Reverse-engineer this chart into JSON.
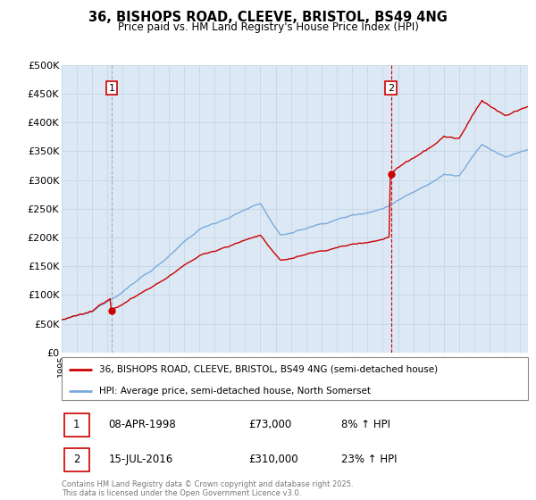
{
  "title": "36, BISHOPS ROAD, CLEEVE, BRISTOL, BS49 4NG",
  "subtitle": "Price paid vs. HM Land Registry's House Price Index (HPI)",
  "legend_line1": "36, BISHOPS ROAD, CLEEVE, BRISTOL, BS49 4NG (semi-detached house)",
  "legend_line2": "HPI: Average price, semi-detached house, North Somerset",
  "footer": "Contains HM Land Registry data © Crown copyright and database right 2025.\nThis data is licensed under the Open Government Licence v3.0.",
  "annotation1": {
    "label": "1",
    "date": "08-APR-1998",
    "price": "£73,000",
    "pct": "8% ↑ HPI",
    "x_year": 1998.27,
    "y_val": 73000
  },
  "annotation2": {
    "label": "2",
    "date": "15-JUL-2016",
    "price": "£310,000",
    "pct": "23% ↑ HPI",
    "x_year": 2016.54,
    "y_val": 310000
  },
  "ylim": [
    0,
    500000
  ],
  "yticks": [
    0,
    50000,
    100000,
    150000,
    200000,
    250000,
    300000,
    350000,
    400000,
    450000,
    500000
  ],
  "ytick_labels": [
    "£0",
    "£50K",
    "£100K",
    "£150K",
    "£200K",
    "£250K",
    "£300K",
    "£350K",
    "£400K",
    "£450K",
    "£500K"
  ],
  "property_color": "#cc0000",
  "hpi_color": "#7aaadd",
  "plot_bg": "#dce9f5",
  "plot_bg_right": "#e8f0f8",
  "grid_color": "#c8d8e8",
  "vline1_color": "#aaaaaa",
  "vline2_color": "#cc0000",
  "box_color": "#cc0000",
  "xlim_start": 1995,
  "xlim_end": 2025.5
}
